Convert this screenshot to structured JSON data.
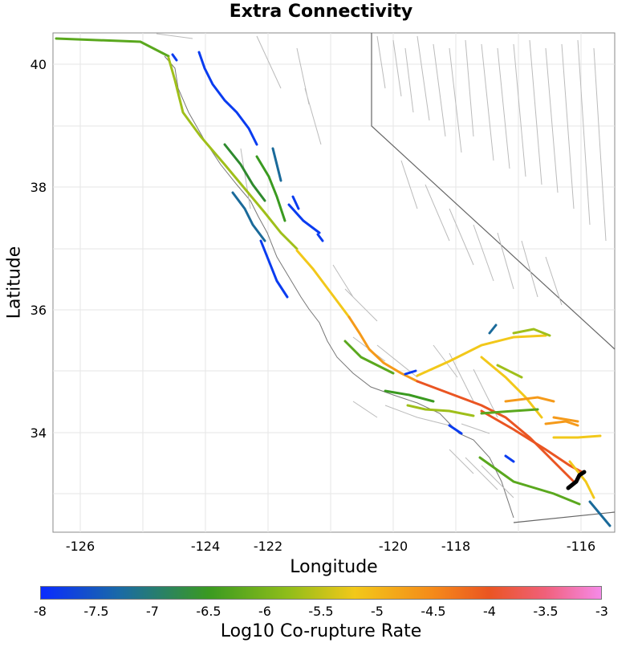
{
  "title": "Extra Connectivity",
  "x_axis": {
    "label": "Longitude",
    "ticks": [
      "-126",
      "-124",
      "-122",
      "-120",
      "-118",
      "-116"
    ]
  },
  "y_axis": {
    "label": "Latitude",
    "ticks": [
      "40",
      "38",
      "36",
      "34"
    ]
  },
  "colorbar": {
    "label": "Log10 Co-rupture Rate",
    "ticks": [
      "-8",
      "-7.5",
      "-7",
      "-6.5",
      "-6",
      "-5.5",
      "-5",
      "-4.5",
      "-4",
      "-3.5",
      "-3"
    ],
    "range": [
      -8,
      -3
    ]
  },
  "colors": {
    "blue": "#0a3cf0",
    "teal": "#1a6a9a",
    "green": "#3a9a20",
    "yellowgreen": "#9fbf1a",
    "yellow": "#f2c81a",
    "orange": "#f59a1a",
    "redorange": "#ea5522",
    "pink": "#f06a7a",
    "black": "#000000",
    "border": "#777777",
    "section_outline": "#bbbbbb"
  }
}
